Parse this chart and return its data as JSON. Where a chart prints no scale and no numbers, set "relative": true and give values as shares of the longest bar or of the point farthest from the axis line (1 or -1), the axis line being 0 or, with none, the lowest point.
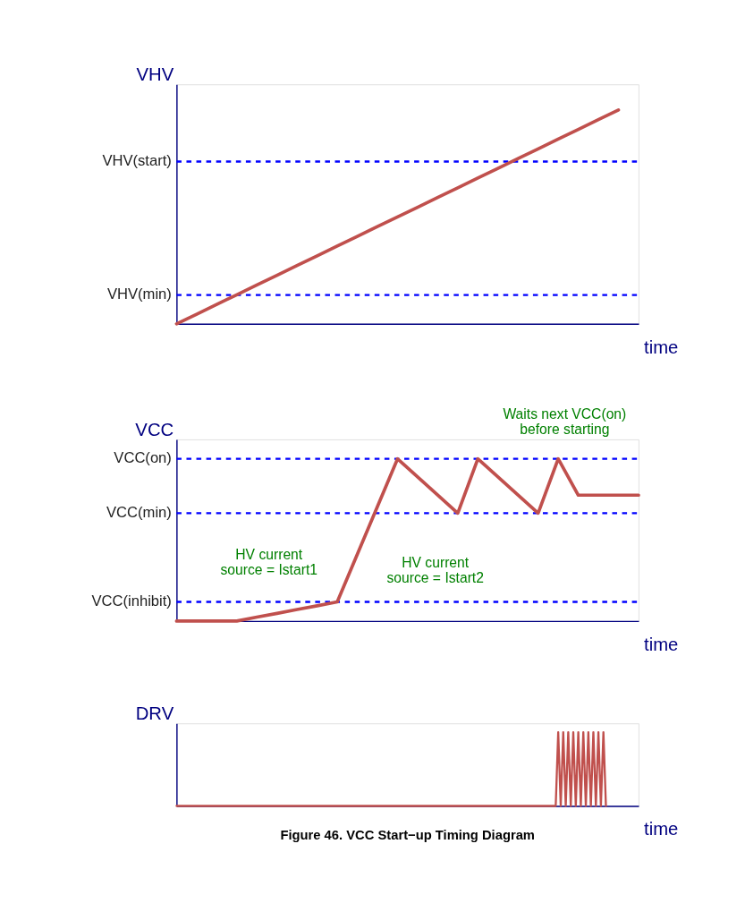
{
  "chart_data": [
    {
      "type": "line",
      "ylabel": "VHV",
      "xlabel": "time",
      "relative": true,
      "tick_labels": false,
      "line_style": "solid",
      "categories": [
        null,
        null,
        null,
        null,
        null,
        null,
        null,
        null,
        null,
        null,
        null,
        null,
        null,
        null,
        null,
        null,
        null,
        null,
        null,
        null,
        null,
        null,
        null,
        null
      ],
      "series": [
        {
          "color": "#c0504d",
          "values": [
            0,
            0.045,
            0.091,
            0.136,
            0.182,
            0.227,
            0.273,
            0.318,
            0.364,
            0.409,
            0.455,
            0.5,
            0.545,
            0.591,
            0.636,
            0.682,
            0.727,
            0.773,
            0.818,
            0.864,
            0.909,
            0.955,
            1,
            null
          ]
        }
      ],
      "ref_lines": [
        {
          "axis": "y",
          "value": 0.759,
          "label": "VHV(start)",
          "color": "#0000ff",
          "line_style": "dashed"
        },
        {
          "axis": "y",
          "value": 0.135,
          "label": "VHV(min)",
          "color": "#0000ff",
          "line_style": "dashed"
        }
      ]
    },
    {
      "type": "line",
      "ylabel": "VCC",
      "xlabel": "time",
      "relative": true,
      "tick_labels": false,
      "line_style": "solid",
      "categories": [
        null,
        null,
        null,
        null,
        null,
        null,
        null,
        null,
        null,
        null,
        null,
        null,
        null,
        null,
        null,
        null,
        null,
        null,
        null,
        null,
        null,
        null,
        null,
        null
      ],
      "series": [
        {
          "color": "#c0504d",
          "values": [
            0,
            0,
            0,
            0,
            0.024,
            0.047,
            0.071,
            0.094,
            0.118,
            0.412,
            0.706,
            1,
            0.888,
            0.777,
            0.665,
            1,
            0.888,
            0.777,
            0.665,
            1,
            0.776,
            0.776,
            0.776,
            0.776
          ]
        }
      ],
      "ref_lines": [
        {
          "axis": "y",
          "value": 1,
          "label": "VCC(on)",
          "color": "#0000ff",
          "line_style": "dashed"
        },
        {
          "axis": "y",
          "value": 0.665,
          "label": "VCC(min)",
          "color": "#0000ff",
          "line_style": "dashed"
        },
        {
          "axis": "y",
          "value": 0.118,
          "label": "VCC(inhibit)",
          "color": "#0000ff",
          "line_style": "dashed"
        }
      ],
      "annotations": [
        "HV current source = Istart1",
        "HV current source = Istart2",
        "Waits next VCC(on) before starting"
      ]
    },
    {
      "type": "line",
      "ylabel": "DRV",
      "xlabel": "time",
      "relative": true,
      "tick_labels": false,
      "line_style": "solid",
      "categories": [
        null,
        null,
        null,
        null,
        null,
        null,
        null,
        null,
        null,
        null,
        null,
        null,
        null,
        null,
        null,
        null,
        null,
        null,
        null,
        null,
        null,
        null,
        null,
        null,
        null,
        null,
        null,
        null,
        null,
        null,
        null,
        null,
        null,
        null,
        null,
        null,
        null,
        null,
        null,
        null,
        null,
        null,
        null,
        null,
        null,
        null,
        null,
        null,
        null,
        null,
        null,
        null,
        null,
        null,
        null,
        null,
        null,
        null,
        null,
        null,
        null,
        null,
        null,
        null,
        null,
        null,
        null,
        null,
        null,
        null,
        null,
        null,
        null,
        null,
        null,
        null,
        null,
        null,
        null,
        null,
        null,
        null,
        null,
        null,
        null,
        null,
        null,
        null,
        null,
        null,
        null,
        null,
        null,
        null,
        null,
        null,
        null,
        null,
        null,
        null,
        null,
        null,
        null,
        null,
        null,
        null,
        null,
        null,
        null,
        null,
        null,
        null,
        null,
        null,
        null,
        null,
        null,
        null,
        null,
        null,
        null,
        null,
        null,
        null,
        null,
        null,
        null,
        null,
        null,
        null,
        null,
        null,
        null,
        null,
        null,
        null,
        null,
        null,
        null,
        null,
        null,
        null,
        null,
        null,
        null,
        null,
        null,
        null,
        null,
        null,
        null,
        null,
        null,
        null,
        null,
        null,
        null,
        null,
        null,
        null,
        null,
        null,
        null,
        null,
        null,
        null,
        null,
        null,
        null,
        null,
        null,
        null,
        null,
        null,
        null,
        null,
        null,
        null,
        null,
        null,
        null,
        null,
        null,
        null,
        null
      ],
      "series": [
        {
          "color": "#c0504d",
          "values": [
            0,
            0,
            0,
            0,
            0,
            0,
            0,
            0,
            0,
            0,
            0,
            0,
            0,
            0,
            0,
            0,
            0,
            0,
            0,
            0,
            0,
            0,
            0,
            0,
            0,
            0,
            0,
            0,
            0,
            0,
            0,
            0,
            0,
            0,
            0,
            0,
            0,
            0,
            0,
            0,
            0,
            0,
            0,
            0,
            0,
            0,
            0,
            0,
            0,
            0,
            0,
            0,
            0,
            0,
            0,
            0,
            0,
            0,
            0,
            0,
            0,
            0,
            0,
            0,
            0,
            0,
            0,
            0,
            0,
            0,
            0,
            0,
            0,
            0,
            0,
            0,
            0,
            0,
            0,
            0,
            0,
            0,
            0,
            0,
            0,
            0,
            0,
            0,
            0,
            0,
            0,
            0,
            0,
            0,
            0,
            0,
            0,
            0,
            0,
            0,
            0,
            0,
            0,
            0,
            0,
            0,
            0,
            0,
            0,
            0,
            0,
            0,
            0,
            0,
            0,
            0,
            0,
            0,
            0,
            0,
            0,
            0,
            0,
            0,
            0,
            0,
            0,
            0,
            0,
            0,
            0,
            0,
            0,
            0,
            0,
            0,
            0,
            0,
            0,
            0,
            0,
            0,
            0,
            0,
            0,
            0,
            0,
            0,
            0,
            0,
            0,
            0,
            1,
            0,
            1,
            0,
            1,
            0,
            1,
            0,
            1,
            0,
            1,
            0,
            1,
            0,
            1,
            0,
            1,
            0,
            1,
            0,
            null,
            null,
            null,
            null,
            null,
            null,
            null,
            null,
            null,
            null,
            null,
            null,
            null
          ]
        }
      ],
      "annotations": [
        "Figure 46. VCC Start−up Timing Diagram"
      ]
    }
  ]
}
